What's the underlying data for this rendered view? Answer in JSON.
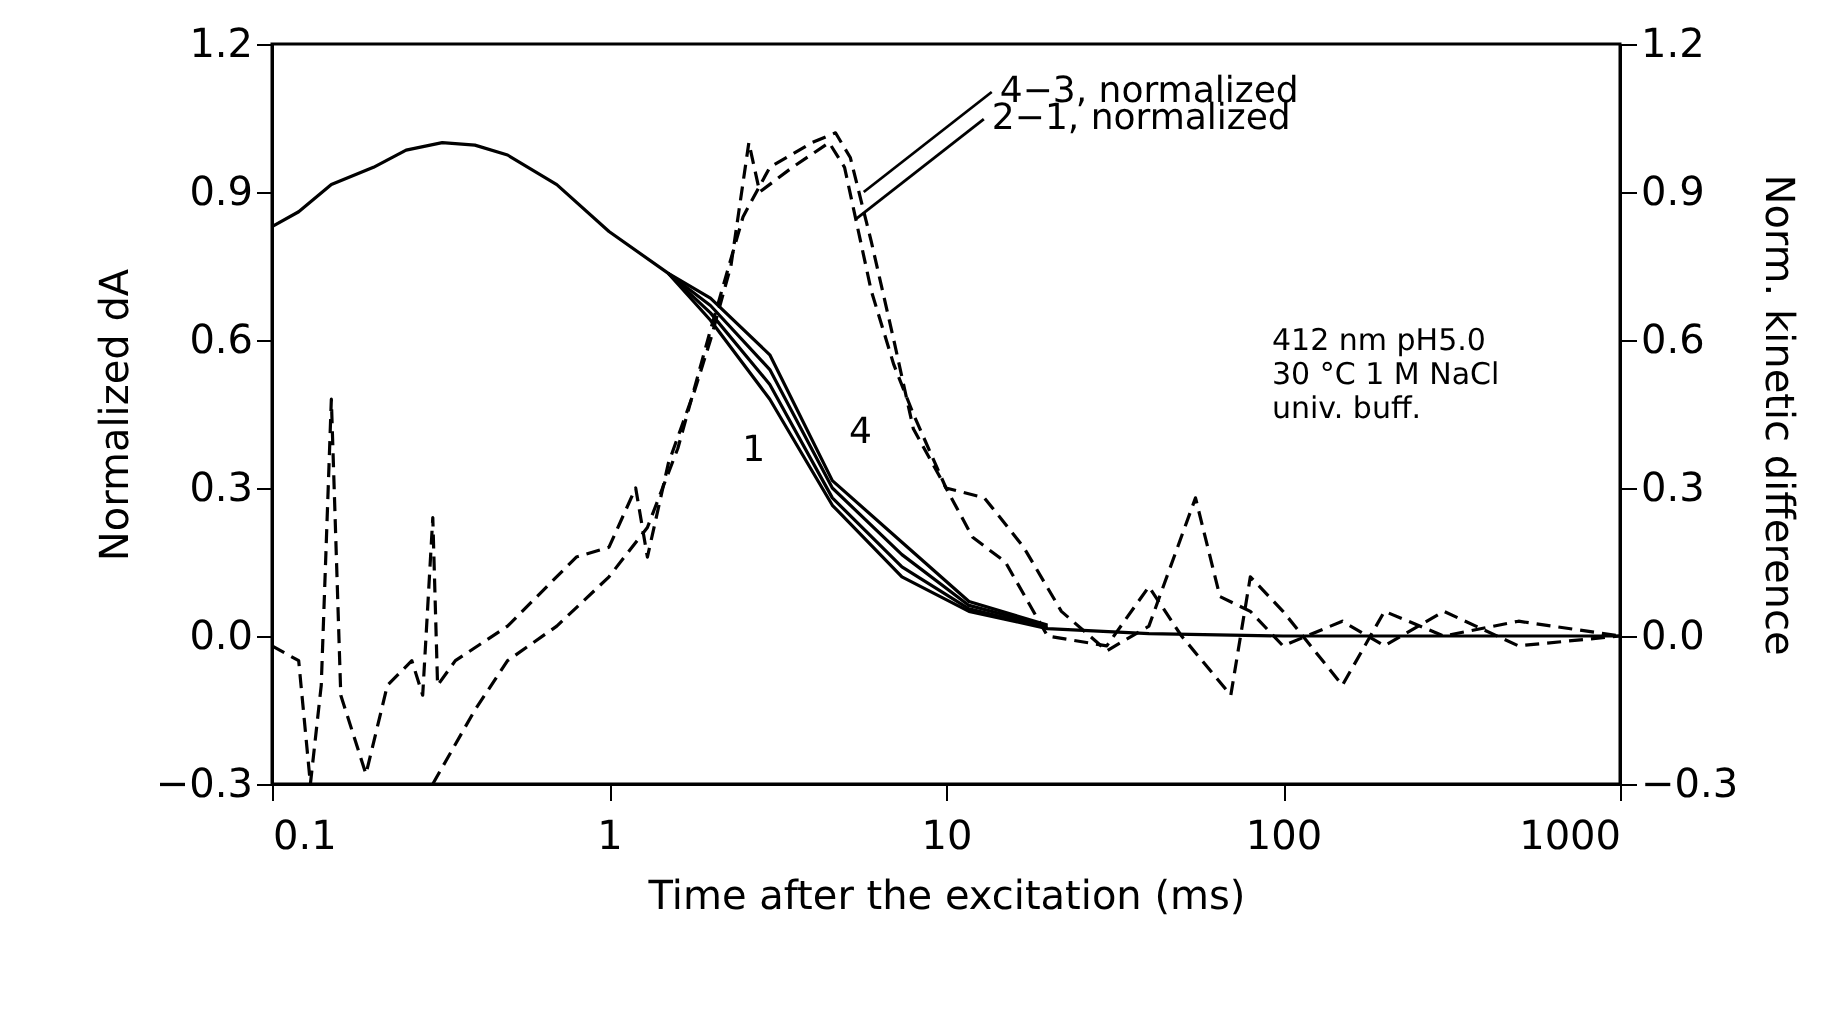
{
  "chart_data": {
    "type": "line",
    "xlabel": "Time after the excitation (ms)",
    "ylabel": "Normalized dA",
    "y2label": "Norm. kinetic difference",
    "log": "x",
    "xlim": [
      0.1,
      1000
    ],
    "xticks": [
      0.1,
      1,
      10,
      100,
      1000
    ],
    "ylim": [
      -0.3,
      1.2
    ],
    "yticks": [
      {
        "value": -0.3,
        "label": "−0.3"
      },
      {
        "value": 0,
        "label": "0.0"
      },
      0.3,
      0.6,
      0.9,
      1.2
    ],
    "y2lim": [
      -0.3,
      1.2
    ],
    "y2ticks": [
      {
        "value": -0.3,
        "label": "−0.3"
      },
      {
        "value": 0,
        "label": "0.0"
      },
      0.3,
      0.6,
      0.9,
      1.2
    ],
    "line_style": "solid",
    "x": [
      0.1,
      0.12,
      0.15,
      0.2,
      0.25,
      0.32,
      0.4,
      0.5,
      0.7,
      1,
      1.5,
      2,
      3,
      4.6,
      7.4,
      11.7,
      20,
      40,
      100,
      1000
    ],
    "series": [
      {
        "name": "1",
        "color": "#000000",
        "values": [
          0.83,
          0.86,
          0.915,
          0.95,
          0.985,
          1.0,
          0.995,
          0.975,
          0.915,
          0.82,
          0.735,
          0.64,
          0.48,
          0.265,
          0.12,
          0.05,
          0.015,
          0.005,
          0,
          0
        ]
      },
      {
        "color": "#000000",
        "x": [
          1.5,
          2,
          3,
          4.6,
          7.4,
          11.7,
          20
        ],
        "values": [
          0.735,
          0.655,
          0.51,
          0.28,
          0.14,
          0.055,
          0.017
        ]
      },
      {
        "color": "#000000",
        "x": [
          1.5,
          2,
          3,
          4.6,
          7.4,
          11.7,
          20
        ],
        "values": [
          0.735,
          0.67,
          0.54,
          0.3,
          0.165,
          0.062,
          0.02
        ]
      },
      {
        "name": "4",
        "color": "#000000",
        "x": [
          1.5,
          2,
          3,
          4.6,
          7.4,
          11.7,
          20
        ],
        "values": [
          0.735,
          0.685,
          0.57,
          0.315,
          0.19,
          0.07,
          0.022
        ]
      },
      {
        "axis": "y2",
        "color": "#000000",
        "line_style": "dashed",
        "x": [
          0.3,
          0.4,
          0.5,
          0.7,
          1,
          1.3,
          1.6,
          2,
          2.5,
          3,
          4,
          4.7,
          5.2,
          6,
          7,
          8,
          10,
          13,
          17,
          22,
          30,
          40,
          55,
          65,
          80,
          100,
          150,
          200,
          300,
          500,
          1000
        ],
        "values": [
          -0.3,
          -0.15,
          -0.05,
          0.02,
          0.12,
          0.22,
          0.38,
          0.62,
          0.85,
          0.95,
          1.0,
          1.02,
          0.97,
          0.8,
          0.6,
          0.42,
          0.3,
          0.28,
          0.18,
          0.05,
          -0.03,
          0.02,
          0.28,
          0.08,
          0.05,
          -0.02,
          0.03,
          -0.02,
          0.05,
          -0.02,
          0
        ]
      },
      {
        "axis": "y2",
        "color": "#000000",
        "line_style": "dashed",
        "x": [
          0.1,
          0.12,
          0.13,
          0.14,
          0.15,
          0.16,
          0.19,
          0.22,
          0.26,
          0.28,
          0.3,
          0.31,
          0.35,
          0.5,
          0.8,
          1,
          1.2,
          1.3,
          1.5,
          1.8,
          2,
          2.3,
          2.6,
          2.8,
          3.5,
          4.5,
          5,
          6,
          7,
          8,
          10,
          12,
          15,
          20,
          30,
          40,
          50,
          70,
          80,
          100,
          150,
          200,
          300,
          500,
          1000
        ],
        "values": [
          -0.02,
          -0.05,
          -0.3,
          -0.1,
          0.48,
          -0.12,
          -0.28,
          -0.1,
          -0.05,
          -0.12,
          0.24,
          -0.1,
          -0.05,
          0.02,
          0.16,
          0.18,
          0.3,
          0.16,
          0.35,
          0.5,
          0.6,
          0.75,
          1.0,
          0.9,
          0.95,
          1.0,
          0.95,
          0.7,
          0.55,
          0.45,
          0.3,
          0.2,
          0.15,
          0.0,
          -0.02,
          0.1,
          0.0,
          -0.12,
          0.12,
          0.05,
          -0.1,
          0.05,
          0.0,
          0.03,
          0.0
        ]
      }
    ],
    "annotations": [
      {
        "text": "4−3, normalized",
        "x": 5.7,
        "y": 0.9
      },
      {
        "text": "2−1, normalized",
        "x": 5.4,
        "y": 0.845
      },
      "412 nm pH5.0",
      "30 °C 1 M NaCl",
      "univ. buff."
    ]
  }
}
